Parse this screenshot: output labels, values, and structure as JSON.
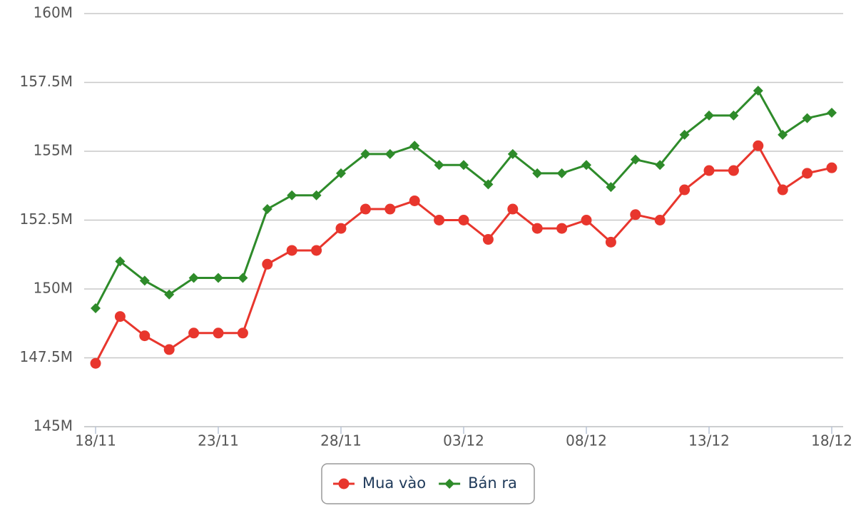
{
  "chart_data": {
    "type": "line",
    "categories": [
      "18/11",
      null,
      null,
      null,
      null,
      "23/11",
      null,
      null,
      null,
      null,
      "28/11",
      null,
      null,
      null,
      null,
      "03/12",
      null,
      null,
      null,
      null,
      "08/12",
      null,
      null,
      null,
      null,
      "13/12",
      null,
      null,
      null,
      null,
      "18/12"
    ],
    "series": [
      {
        "name": "Mua vào",
        "color": "#e8362d",
        "marker": "circle",
        "values": [
          147.3,
          149.0,
          148.3,
          147.8,
          148.4,
          148.4,
          148.4,
          150.9,
          151.4,
          151.4,
          152.2,
          152.9,
          152.9,
          153.2,
          152.5,
          152.5,
          151.8,
          152.9,
          152.2,
          152.2,
          152.5,
          151.7,
          152.7,
          152.5,
          153.6,
          154.3,
          154.3,
          155.2,
          153.6,
          154.2,
          154.4
        ]
      },
      {
        "name": "Bán ra",
        "color": "#2e8b2a",
        "marker": "diamond",
        "values": [
          149.3,
          151.0,
          150.3,
          149.8,
          150.4,
          150.4,
          150.4,
          152.9,
          153.4,
          153.4,
          154.2,
          154.9,
          154.9,
          155.2,
          154.5,
          154.5,
          153.8,
          154.9,
          154.2,
          154.2,
          154.5,
          153.7,
          154.7,
          154.5,
          155.6,
          156.3,
          156.3,
          157.2,
          155.6,
          156.2,
          156.4
        ]
      }
    ],
    "ylim": [
      145,
      160
    ],
    "yticks": [
      {
        "value": 145,
        "label": "145M"
      },
      {
        "value": 147.5,
        "label": "147.5M"
      },
      {
        "value": 150,
        "label": "150M"
      },
      {
        "value": 152.5,
        "label": "152.5M"
      },
      {
        "value": 155,
        "label": "155M"
      },
      {
        "value": 157.5,
        "label": "157.5M"
      },
      {
        "value": 160,
        "label": "160M"
      }
    ],
    "grid": true,
    "legend": "bottom"
  }
}
